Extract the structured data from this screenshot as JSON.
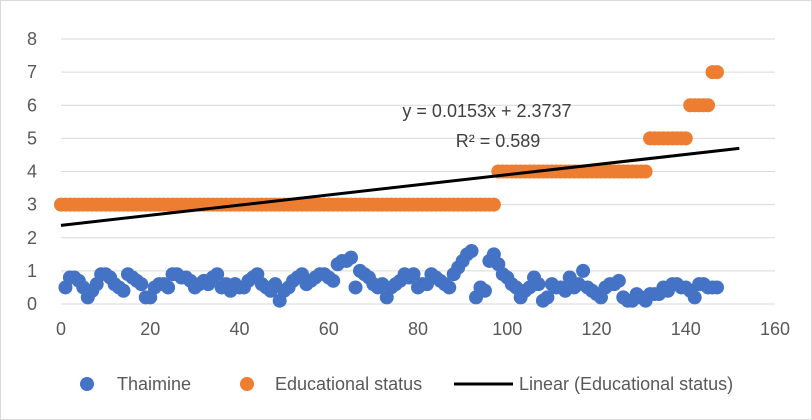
{
  "chart_data": {
    "type": "scatter",
    "xlim": [
      0,
      160
    ],
    "ylim": [
      0,
      8
    ],
    "x_ticks": [
      "0",
      "20",
      "40",
      "60",
      "80",
      "100",
      "120",
      "140",
      "160"
    ],
    "y_ticks": [
      "0",
      "1",
      "2",
      "3",
      "4",
      "5",
      "6",
      "7",
      "8"
    ],
    "grid": {
      "x": false,
      "y": true
    },
    "legend_position": "bottom",
    "series": [
      {
        "name": "Thaimine",
        "color": "#4472c4",
        "points": [
          [
            1,
            0.5
          ],
          [
            2,
            0.8
          ],
          [
            3,
            0.8
          ],
          [
            4,
            0.7
          ],
          [
            5,
            0.5
          ],
          [
            6,
            0.2
          ],
          [
            7,
            0.4
          ],
          [
            8,
            0.6
          ],
          [
            9,
            0.9
          ],
          [
            10,
            0.9
          ],
          [
            11,
            0.8
          ],
          [
            12,
            0.6
          ],
          [
            13,
            0.5
          ],
          [
            14,
            0.4
          ],
          [
            15,
            0.9
          ],
          [
            16,
            0.8
          ],
          [
            17,
            0.7
          ],
          [
            18,
            0.6
          ],
          [
            19,
            0.2
          ],
          [
            20,
            0.2
          ],
          [
            21,
            0.5
          ],
          [
            22,
            0.6
          ],
          [
            23,
            0.6
          ],
          [
            24,
            0.5
          ],
          [
            25,
            0.9
          ],
          [
            26,
            0.9
          ],
          [
            27,
            0.8
          ],
          [
            28,
            0.8
          ],
          [
            29,
            0.7
          ],
          [
            30,
            0.5
          ],
          [
            31,
            0.6
          ],
          [
            32,
            0.7
          ],
          [
            33,
            0.6
          ],
          [
            34,
            0.8
          ],
          [
            35,
            0.9
          ],
          [
            36,
            0.5
          ],
          [
            37,
            0.6
          ],
          [
            38,
            0.4
          ],
          [
            39,
            0.6
          ],
          [
            40,
            0.5
          ],
          [
            41,
            0.5
          ],
          [
            42,
            0.7
          ],
          [
            43,
            0.8
          ],
          [
            44,
            0.9
          ],
          [
            45,
            0.6
          ],
          [
            46,
            0.5
          ],
          [
            47,
            0.4
          ],
          [
            48,
            0.6
          ],
          [
            49,
            0.1
          ],
          [
            50,
            0.4
          ],
          [
            51,
            0.5
          ],
          [
            52,
            0.7
          ],
          [
            53,
            0.8
          ],
          [
            54,
            0.9
          ],
          [
            55,
            0.6
          ],
          [
            56,
            0.7
          ],
          [
            57,
            0.8
          ],
          [
            58,
            0.9
          ],
          [
            59,
            0.9
          ],
          [
            60,
            0.8
          ],
          [
            61,
            0.7
          ],
          [
            62,
            1.2
          ],
          [
            63,
            1.3
          ],
          [
            64,
            1.3
          ],
          [
            65,
            1.4
          ],
          [
            66,
            0.5
          ],
          [
            67,
            1.0
          ],
          [
            68,
            0.9
          ],
          [
            69,
            0.8
          ],
          [
            70,
            0.6
          ],
          [
            71,
            0.5
          ],
          [
            72,
            0.6
          ],
          [
            73,
            0.2
          ],
          [
            74,
            0.5
          ],
          [
            75,
            0.6
          ],
          [
            76,
            0.7
          ],
          [
            77,
            0.9
          ],
          [
            78,
            0.8
          ],
          [
            79,
            0.9
          ],
          [
            80,
            0.5
          ],
          [
            81,
            0.6
          ],
          [
            82,
            0.6
          ],
          [
            83,
            0.9
          ],
          [
            84,
            0.8
          ],
          [
            85,
            0.7
          ],
          [
            86,
            0.6
          ],
          [
            87,
            0.5
          ],
          [
            88,
            0.9
          ],
          [
            89,
            1.1
          ],
          [
            90,
            1.3
          ],
          [
            91,
            1.5
          ],
          [
            92,
            1.6
          ],
          [
            93,
            0.2
          ],
          [
            94,
            0.5
          ],
          [
            95,
            0.4
          ],
          [
            96,
            1.3
          ],
          [
            97,
            1.5
          ],
          [
            98,
            1.2
          ],
          [
            99,
            0.9
          ],
          [
            100,
            0.8
          ],
          [
            101,
            0.6
          ],
          [
            102,
            0.5
          ],
          [
            103,
            0.2
          ],
          [
            104,
            0.4
          ],
          [
            105,
            0.5
          ],
          [
            106,
            0.8
          ],
          [
            107,
            0.6
          ],
          [
            108,
            0.1
          ],
          [
            109,
            0.2
          ],
          [
            110,
            0.6
          ],
          [
            111,
            0.5
          ],
          [
            112,
            0.5
          ],
          [
            113,
            0.4
          ],
          [
            114,
            0.8
          ],
          [
            115,
            0.5
          ],
          [
            116,
            0.6
          ],
          [
            117,
            1.0
          ],
          [
            118,
            0.5
          ],
          [
            119,
            0.4
          ],
          [
            120,
            0.3
          ],
          [
            121,
            0.2
          ],
          [
            122,
            0.5
          ],
          [
            123,
            0.6
          ],
          [
            124,
            0.6
          ],
          [
            125,
            0.7
          ],
          [
            126,
            0.2
          ],
          [
            127,
            0.1
          ],
          [
            128,
            0.1
          ],
          [
            129,
            0.3
          ],
          [
            130,
            0.2
          ],
          [
            131,
            0.1
          ],
          [
            132,
            0.3
          ],
          [
            133,
            0.3
          ],
          [
            134,
            0.3
          ],
          [
            135,
            0.5
          ],
          [
            136,
            0.4
          ],
          [
            137,
            0.6
          ],
          [
            138,
            0.6
          ],
          [
            139,
            0.5
          ],
          [
            140,
            0.5
          ],
          [
            141,
            0.4
          ],
          [
            142,
            0.2
          ],
          [
            143,
            0.6
          ],
          [
            144,
            0.6
          ],
          [
            145,
            0.5
          ],
          [
            146,
            0.5
          ],
          [
            147,
            0.5
          ]
        ]
      },
      {
        "name": "Educational status",
        "color": "#ed7d31",
        "points": [
          [
            0,
            3
          ],
          [
            1,
            3
          ],
          [
            2,
            3
          ],
          [
            3,
            3
          ],
          [
            4,
            3
          ],
          [
            5,
            3
          ],
          [
            6,
            3
          ],
          [
            7,
            3
          ],
          [
            8,
            3
          ],
          [
            9,
            3
          ],
          [
            10,
            3
          ],
          [
            11,
            3
          ],
          [
            12,
            3
          ],
          [
            13,
            3
          ],
          [
            14,
            3
          ],
          [
            15,
            3
          ],
          [
            16,
            3
          ],
          [
            17,
            3
          ],
          [
            18,
            3
          ],
          [
            19,
            3
          ],
          [
            20,
            3
          ],
          [
            21,
            3
          ],
          [
            22,
            3
          ],
          [
            23,
            3
          ],
          [
            24,
            3
          ],
          [
            25,
            3
          ],
          [
            26,
            3
          ],
          [
            27,
            3
          ],
          [
            28,
            3
          ],
          [
            29,
            3
          ],
          [
            30,
            3
          ],
          [
            31,
            3
          ],
          [
            32,
            3
          ],
          [
            33,
            3
          ],
          [
            34,
            3
          ],
          [
            35,
            3
          ],
          [
            36,
            3
          ],
          [
            37,
            3
          ],
          [
            38,
            3
          ],
          [
            39,
            3
          ],
          [
            40,
            3
          ],
          [
            41,
            3
          ],
          [
            42,
            3
          ],
          [
            43,
            3
          ],
          [
            44,
            3
          ],
          [
            45,
            3
          ],
          [
            46,
            3
          ],
          [
            47,
            3
          ],
          [
            48,
            3
          ],
          [
            49,
            3
          ],
          [
            50,
            3
          ],
          [
            51,
            3
          ],
          [
            52,
            3
          ],
          [
            53,
            3
          ],
          [
            54,
            3
          ],
          [
            55,
            3
          ],
          [
            56,
            3
          ],
          [
            57,
            3
          ],
          [
            58,
            3
          ],
          [
            59,
            3
          ],
          [
            60,
            3
          ],
          [
            61,
            3
          ],
          [
            62,
            3
          ],
          [
            63,
            3
          ],
          [
            64,
            3
          ],
          [
            65,
            3
          ],
          [
            66,
            3
          ],
          [
            67,
            3
          ],
          [
            68,
            3
          ],
          [
            69,
            3
          ],
          [
            70,
            3
          ],
          [
            71,
            3
          ],
          [
            72,
            3
          ],
          [
            73,
            3
          ],
          [
            74,
            3
          ],
          [
            75,
            3
          ],
          [
            76,
            3
          ],
          [
            77,
            3
          ],
          [
            78,
            3
          ],
          [
            79,
            3
          ],
          [
            80,
            3
          ],
          [
            81,
            3
          ],
          [
            82,
            3
          ],
          [
            83,
            3
          ],
          [
            84,
            3
          ],
          [
            85,
            3
          ],
          [
            86,
            3
          ],
          [
            87,
            3
          ],
          [
            88,
            3
          ],
          [
            89,
            3
          ],
          [
            90,
            3
          ],
          [
            91,
            3
          ],
          [
            92,
            3
          ],
          [
            93,
            3
          ],
          [
            94,
            3
          ],
          [
            95,
            3
          ],
          [
            96,
            3
          ],
          [
            97,
            3
          ],
          [
            98,
            4
          ],
          [
            99,
            4
          ],
          [
            100,
            4
          ],
          [
            101,
            4
          ],
          [
            102,
            4
          ],
          [
            103,
            4
          ],
          [
            104,
            4
          ],
          [
            105,
            4
          ],
          [
            106,
            4
          ],
          [
            107,
            4
          ],
          [
            108,
            4
          ],
          [
            109,
            4
          ],
          [
            110,
            4
          ],
          [
            111,
            4
          ],
          [
            112,
            4
          ],
          [
            113,
            4
          ],
          [
            114,
            4
          ],
          [
            115,
            4
          ],
          [
            116,
            4
          ],
          [
            117,
            4
          ],
          [
            118,
            4
          ],
          [
            119,
            4
          ],
          [
            120,
            4
          ],
          [
            121,
            4
          ],
          [
            122,
            4
          ],
          [
            123,
            4
          ],
          [
            124,
            4
          ],
          [
            125,
            4
          ],
          [
            126,
            4
          ],
          [
            127,
            4
          ],
          [
            128,
            4
          ],
          [
            129,
            4
          ],
          [
            130,
            4
          ],
          [
            131,
            4
          ],
          [
            132,
            5
          ],
          [
            133,
            5
          ],
          [
            134,
            5
          ],
          [
            135,
            5
          ],
          [
            136,
            5
          ],
          [
            137,
            5
          ],
          [
            138,
            5
          ],
          [
            139,
            5
          ],
          [
            140,
            5
          ],
          [
            141,
            6
          ],
          [
            142,
            6
          ],
          [
            143,
            6
          ],
          [
            144,
            6
          ],
          [
            145,
            6
          ],
          [
            146,
            7
          ],
          [
            147,
            7
          ]
        ]
      }
    ],
    "trendline": {
      "name": "Linear (Educational status)",
      "color": "#000000",
      "slope": 0.0153,
      "intercept": 2.3737,
      "x_range": [
        0,
        152
      ],
      "equation": "y = 0.0153x + 2.3737",
      "r_squared": "R² = 0.589"
    }
  }
}
